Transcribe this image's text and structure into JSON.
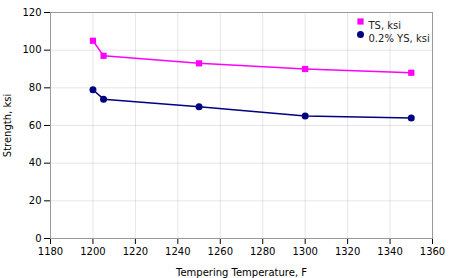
{
  "chart_data": {
    "type": "line",
    "x": [
      1200,
      1205,
      1250,
      1300,
      1350
    ],
    "series": [
      {
        "name": "TS, ksi",
        "color": "#FF00FF",
        "marker": "square",
        "values": [
          105,
          97,
          93,
          90,
          88
        ]
      },
      {
        "name": "0.2% YS, ksi",
        "color": "#000080",
        "marker": "circle",
        "values": [
          79,
          74,
          70,
          65,
          64
        ]
      }
    ],
    "xlabel": "Tempering Temperature, F",
    "ylabel": "Strength, ksi",
    "xlim": [
      1180,
      1360
    ],
    "ylim": [
      0,
      120
    ],
    "xticks": [
      1180,
      1200,
      1220,
      1240,
      1260,
      1280,
      1300,
      1320,
      1340,
      1360
    ],
    "yticks": [
      0,
      20,
      40,
      60,
      80,
      100,
      120
    ],
    "grid": true,
    "legend": "upper right"
  }
}
